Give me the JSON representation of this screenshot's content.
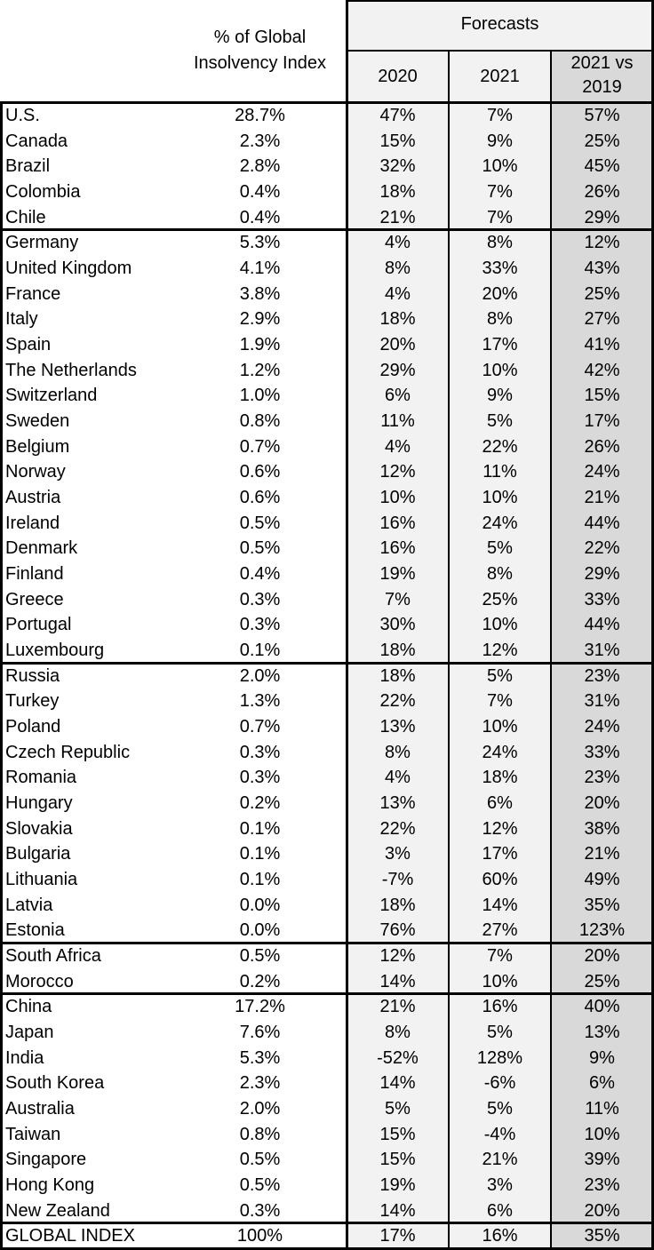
{
  "header": {
    "share": "% of Global Insolvency Index",
    "forecasts": "Forecasts",
    "y2020": "2020",
    "y2021": "2021",
    "vs": "2021 vs 2019"
  },
  "groups": [
    [
      [
        "U.S.",
        "28.7%",
        "47%",
        "7%",
        "57%"
      ],
      [
        "Canada",
        "2.3%",
        "15%",
        "9%",
        "25%"
      ],
      [
        "Brazil",
        "2.8%",
        "32%",
        "10%",
        "45%"
      ],
      [
        "Colombia",
        "0.4%",
        "18%",
        "7%",
        "26%"
      ],
      [
        "Chile",
        "0.4%",
        "21%",
        "7%",
        "29%"
      ]
    ],
    [
      [
        "Germany",
        "5.3%",
        "4%",
        "8%",
        "12%"
      ],
      [
        "United Kingdom",
        "4.1%",
        "8%",
        "33%",
        "43%"
      ],
      [
        "France",
        "3.8%",
        "4%",
        "20%",
        "25%"
      ],
      [
        "Italy",
        "2.9%",
        "18%",
        "8%",
        "27%"
      ],
      [
        "Spain",
        "1.9%",
        "20%",
        "17%",
        "41%"
      ],
      [
        "The Netherlands",
        "1.2%",
        "29%",
        "10%",
        "42%"
      ],
      [
        "Switzerland",
        "1.0%",
        "6%",
        "9%",
        "15%"
      ],
      [
        "Sweden",
        "0.8%",
        "11%",
        "5%",
        "17%"
      ],
      [
        "Belgium",
        "0.7%",
        "4%",
        "22%",
        "26%"
      ],
      [
        "Norway",
        "0.6%",
        "12%",
        "11%",
        "24%"
      ],
      [
        "Austria",
        "0.6%",
        "10%",
        "10%",
        "21%"
      ],
      [
        "Ireland",
        "0.5%",
        "16%",
        "24%",
        "44%"
      ],
      [
        "Denmark",
        "0.5%",
        "16%",
        "5%",
        "22%"
      ],
      [
        "Finland",
        "0.4%",
        "19%",
        "8%",
        "29%"
      ],
      [
        "Greece",
        "0.3%",
        "7%",
        "25%",
        "33%"
      ],
      [
        "Portugal",
        "0.3%",
        "30%",
        "10%",
        "44%"
      ],
      [
        "Luxembourg",
        "0.1%",
        "18%",
        "12%",
        "31%"
      ]
    ],
    [
      [
        "Russia",
        "2.0%",
        "18%",
        "5%",
        "23%"
      ],
      [
        "Turkey",
        "1.3%",
        "22%",
        "7%",
        "31%"
      ],
      [
        "Poland",
        "0.7%",
        "13%",
        "10%",
        "24%"
      ],
      [
        "Czech Republic",
        "0.3%",
        "8%",
        "24%",
        "33%"
      ],
      [
        "Romania",
        "0.3%",
        "4%",
        "18%",
        "23%"
      ],
      [
        "Hungary",
        "0.2%",
        "13%",
        "6%",
        "20%"
      ],
      [
        "Slovakia",
        "0.1%",
        "22%",
        "12%",
        "38%"
      ],
      [
        "Bulgaria",
        "0.1%",
        "3%",
        "17%",
        "21%"
      ],
      [
        "Lithuania",
        "0.1%",
        "-7%",
        "60%",
        "49%"
      ],
      [
        "Latvia",
        "0.0%",
        "18%",
        "14%",
        "35%"
      ],
      [
        "Estonia",
        "0.0%",
        "76%",
        "27%",
        "123%"
      ]
    ],
    [
      [
        "South Africa",
        "0.5%",
        "12%",
        "7%",
        "20%"
      ],
      [
        "Morocco",
        "0.2%",
        "14%",
        "10%",
        "25%"
      ]
    ],
    [
      [
        "China",
        "17.2%",
        "21%",
        "16%",
        "40%"
      ],
      [
        "Japan",
        "7.6%",
        "8%",
        "5%",
        "13%"
      ],
      [
        "India",
        "5.3%",
        "-52%",
        "128%",
        "9%"
      ],
      [
        "South Korea",
        "2.3%",
        "14%",
        "-6%",
        "6%"
      ],
      [
        "Australia",
        "2.0%",
        "5%",
        "5%",
        "11%"
      ],
      [
        "Taiwan",
        "0.8%",
        "15%",
        "-4%",
        "10%"
      ],
      [
        "Singapore",
        "0.5%",
        "15%",
        "21%",
        "39%"
      ],
      [
        "Hong Kong",
        "0.5%",
        "19%",
        "3%",
        "23%"
      ],
      [
        "New Zealand",
        "0.3%",
        "14%",
        "6%",
        "20%"
      ]
    ],
    [
      [
        "GLOBAL INDEX",
        "100%",
        "17%",
        "16%",
        "35%"
      ]
    ]
  ]
}
